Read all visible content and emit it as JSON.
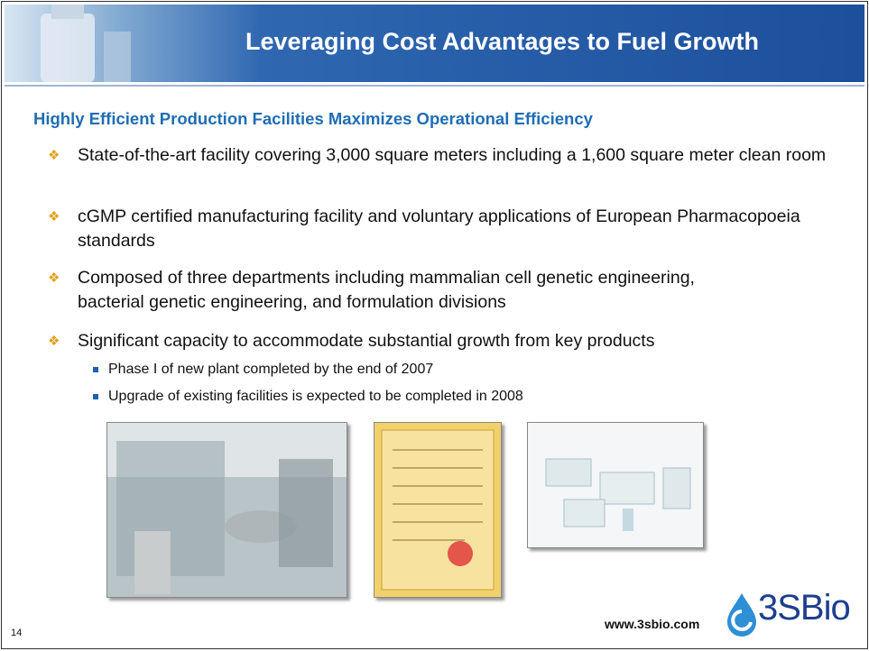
{
  "header": {
    "title": "Leveraging Cost Advantages to Fuel Growth"
  },
  "subtitle": "Highly Efficient Production Facilities Maximizes Operational Efficiency",
  "bullets": [
    {
      "text": "State-of-the-art facility covering 3,000 square meters including a 1,600 square meter clean room"
    },
    {
      "text": "cGMP certified manufacturing facility and voluntary applications of European Pharmacopoeia standards"
    },
    {
      "text": "Composed of  three departments including mammalian cell genetic engineering, bacterial genetic engineering, and formulation divisions"
    },
    {
      "text": "Significant capacity to accommodate substantial growth from key products",
      "sub_bullets": [
        "Phase I of new plant completed by the end of 2007",
        "Upgrade of existing facilities is expected to be completed in 2008"
      ]
    }
  ],
  "footer": {
    "url": "www.3sbio.com",
    "page_number": "14",
    "logo": "3SBio"
  }
}
